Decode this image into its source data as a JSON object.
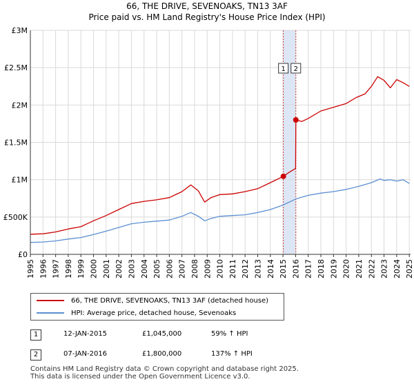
{
  "title_line1": "66, THE DRIVE, SEVENOAKS, TN13 3AF",
  "title_line2": "Price paid vs. HM Land Registry's House Price Index (HPI)",
  "legend": {
    "property": "66, THE DRIVE, SEVENOAKS, TN13 3AF (detached house)",
    "hpi": "HPI: Average price, detached house, Sevenoaks"
  },
  "transactions": [
    {
      "num": "1",
      "date": "12-JAN-2015",
      "price": "£1,045,000",
      "hpi": "59% ↑ HPI"
    },
    {
      "num": "2",
      "date": "07-JAN-2016",
      "price": "£1,800,000",
      "hpi": "137% ↑ HPI"
    }
  ],
  "footer": {
    "line1": "Contains HM Land Registry data © Crown copyright and database right 2025.",
    "line2": "This data is licensed under the Open Government Licence v3.0."
  },
  "colors": {
    "property": "#cc0000",
    "hpi": "#5b8fd1",
    "shade": "#dde6f5",
    "marker_line": "#d04040"
  },
  "chart_data": {
    "type": "line",
    "xlim": [
      1995,
      2025.1
    ],
    "ylim": [
      0,
      3000000
    ],
    "x_ticks": [
      1995,
      1996,
      1997,
      1998,
      1999,
      2000,
      2001,
      2002,
      2003,
      2004,
      2005,
      2006,
      2007,
      2008,
      2009,
      2010,
      2011,
      2012,
      2013,
      2014,
      2015,
      2016,
      2017,
      2018,
      2019,
      2020,
      2021,
      2022,
      2023,
      2024,
      2025
    ],
    "y_ticks": [
      {
        "value": 0,
        "label": "£0"
      },
      {
        "value": 500000,
        "label": "£500K"
      },
      {
        "value": 1000000,
        "label": "£1M"
      },
      {
        "value": 1500000,
        "label": "£1.5M"
      },
      {
        "value": 2000000,
        "label": "£2M"
      },
      {
        "value": 2500000,
        "label": "£2.5M"
      },
      {
        "value": 3000000,
        "label": "£3M"
      }
    ],
    "grid": true,
    "shaded_period": [
      2015.03,
      2016.02
    ],
    "series": [
      {
        "name": "66, THE DRIVE, SEVENOAKS, TN13 3AF (detached house)",
        "x": [
          1995,
          1996,
          1997,
          1998,
          1999,
          2000,
          2001,
          2002,
          2003,
          2004,
          2005,
          2006,
          2007,
          2007.7,
          2008.3,
          2008.8,
          2009.3,
          2010,
          2011,
          2012,
          2013,
          2014,
          2015.03,
          2015.5,
          2016.0,
          2016.02,
          2016.5,
          2017,
          2018,
          2019,
          2020,
          2020.8,
          2021.5,
          2022,
          2022.5,
          2023,
          2023.5,
          2024,
          2024.5,
          2025
        ],
        "values": [
          270000,
          275000,
          300000,
          340000,
          370000,
          450000,
          520000,
          600000,
          680000,
          710000,
          730000,
          760000,
          840000,
          930000,
          850000,
          700000,
          760000,
          800000,
          810000,
          840000,
          880000,
          960000,
          1045000,
          1100000,
          1150000,
          1800000,
          1780000,
          1820000,
          1920000,
          1970000,
          2020000,
          2100000,
          2150000,
          2250000,
          2380000,
          2330000,
          2230000,
          2340000,
          2300000,
          2250000
        ]
      },
      {
        "name": "HPI: Average price, detached house, Sevenoaks",
        "x": [
          1995,
          1996,
          1997,
          1998,
          1999,
          2000,
          2001,
          2002,
          2003,
          2004,
          2005,
          2006,
          2007,
          2007.7,
          2008.3,
          2008.8,
          2009.3,
          2010,
          2011,
          2012,
          2013,
          2014,
          2015,
          2016,
          2017,
          2018,
          2019,
          2020,
          2021,
          2022,
          2022.7,
          2023,
          2023.5,
          2024,
          2024.5,
          2025
        ],
        "values": [
          160000,
          165000,
          180000,
          205000,
          225000,
          265000,
          310000,
          360000,
          410000,
          430000,
          445000,
          460000,
          510000,
          560000,
          510000,
          450000,
          480000,
          510000,
          520000,
          530000,
          560000,
          600000,
          660000,
          740000,
          790000,
          820000,
          840000,
          870000,
          910000,
          960000,
          1010000,
          990000,
          1000000,
          980000,
          1000000,
          950000
        ]
      }
    ],
    "sales": [
      {
        "label": "1",
        "x": 2015.03,
        "y": 1045000
      },
      {
        "label": "2",
        "x": 2016.02,
        "y": 1800000
      }
    ]
  }
}
